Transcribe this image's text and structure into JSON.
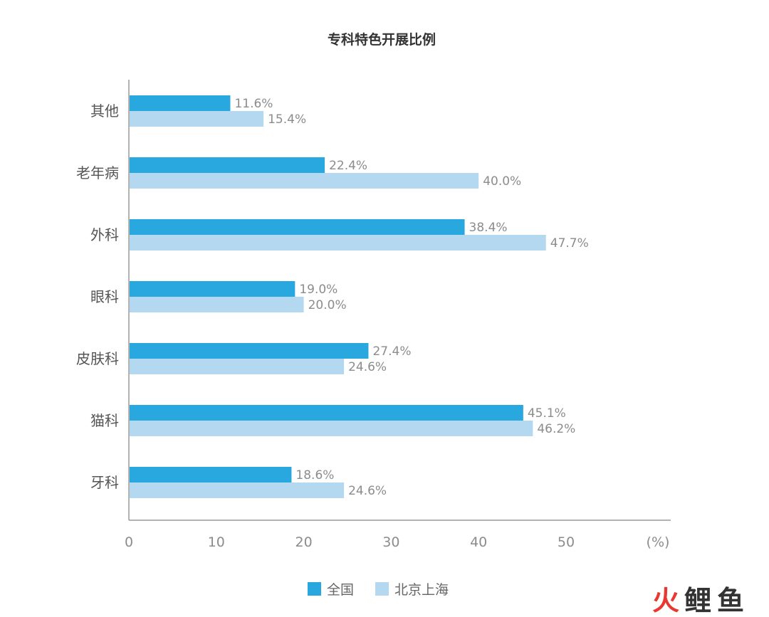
{
  "chart_data": {
    "type": "bar",
    "orientation": "horizontal",
    "title": "专科特色开展比例",
    "categories": [
      "其他",
      "老年病",
      "外科",
      "眼科",
      "皮肤科",
      "猫科",
      "牙科"
    ],
    "series": [
      {
        "name": "全国",
        "color": "#29a8e0",
        "values": [
          11.6,
          22.4,
          38.4,
          19.0,
          27.4,
          45.1,
          18.6
        ],
        "labels": [
          "11.6%",
          "22.4%",
          "38.4%",
          "19.0%",
          "27.4%",
          "45.1%",
          "18.6%"
        ]
      },
      {
        "name": "北京上海",
        "color": "#b4d8f0",
        "values": [
          15.4,
          40.0,
          47.7,
          20.0,
          24.6,
          46.2,
          24.6
        ],
        "labels": [
          "15.4%",
          "40.0%",
          "47.7%",
          "20.0%",
          "24.6%",
          "46.2%",
          "24.6%"
        ]
      }
    ],
    "xticks": [
      "0",
      "10",
      "20",
      "30",
      "40",
      "50"
    ],
    "xunit": "(%)",
    "xlim": [
      0,
      62
    ],
    "grid": false,
    "legend_position": "bottom"
  },
  "watermark": {
    "chars": [
      "火",
      "鲤",
      "鱼"
    ],
    "colors": [
      "#e8382f",
      "#333333",
      "#333333"
    ]
  }
}
